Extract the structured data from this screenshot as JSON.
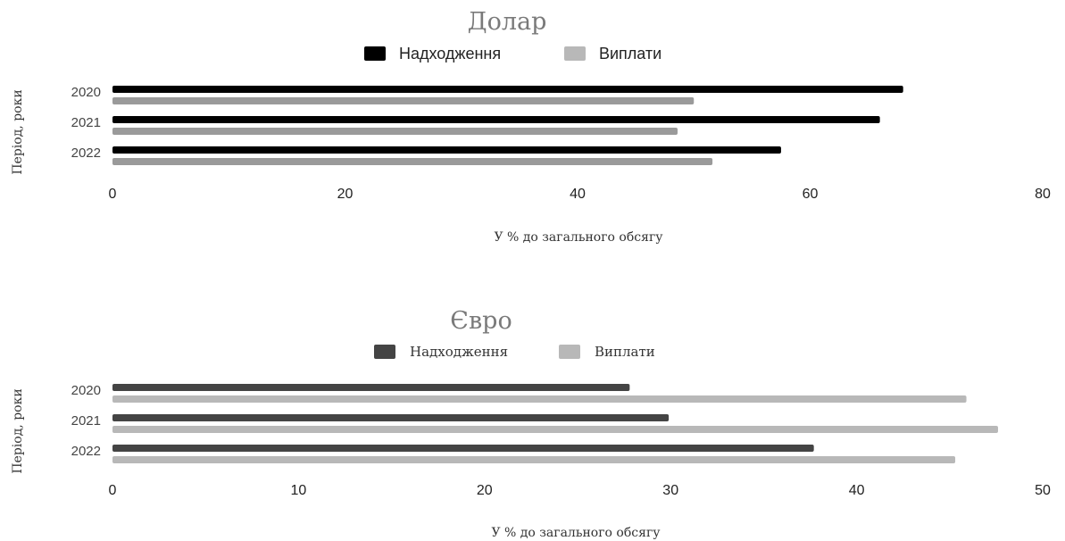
{
  "colors": {
    "dollar_receipts": "#000000",
    "dollar_payments": "#9a9a9a",
    "euro_receipts": "#444444",
    "euro_payments": "#b8b8b8"
  },
  "chart_data": [
    {
      "type": "bar",
      "orientation": "horizontal",
      "title": "Долар",
      "categories": [
        "2020",
        "2021",
        "2022"
      ],
      "series": [
        {
          "name": "Надходження",
          "values": [
            68,
            66,
            57.5
          ]
        },
        {
          "name": "Виплати",
          "values": [
            50,
            48.6,
            51.6
          ]
        }
      ],
      "xlabel": "У % до загального обсягу",
      "ylabel": "Період, роки",
      "xlim": [
        0,
        80
      ],
      "xticks": [
        "0",
        "20",
        "40",
        "60",
        "80"
      ],
      "legend": "top",
      "grid": false
    },
    {
      "type": "bar",
      "orientation": "horizontal",
      "title": "Євро",
      "categories": [
        "2020",
        "2021",
        "2022"
      ],
      "series": [
        {
          "name": "Надходження",
          "values": [
            27.8,
            29.9,
            37.7
          ]
        },
        {
          "name": "Виплати",
          "values": [
            45.9,
            47.6,
            45.3
          ]
        }
      ],
      "xlabel": "У % до загального обсягу",
      "ylabel": "Період, роки",
      "xlim": [
        0,
        50
      ],
      "xticks": [
        "0",
        "10",
        "20",
        "30",
        "40",
        "50"
      ],
      "legend": "top",
      "grid": false
    }
  ]
}
